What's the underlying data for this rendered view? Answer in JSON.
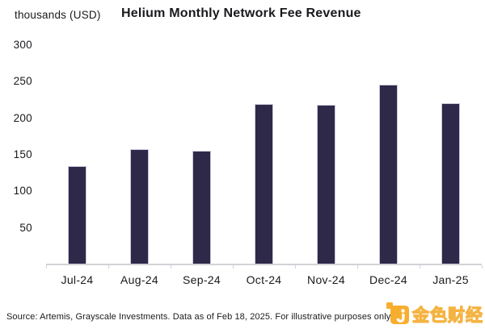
{
  "chart_data": {
    "type": "bar",
    "title": "Helium Monthly Network Fee Revenue",
    "unit_label": "thousands (USD)",
    "xlabel": "",
    "ylabel": "thousands (USD)",
    "categories": [
      "Jul-24",
      "Aug-24",
      "Sep-24",
      "Oct-24",
      "Nov-24",
      "Dec-24",
      "Jan-25"
    ],
    "values": [
      135,
      158,
      155,
      219,
      218,
      246,
      221
    ],
    "ylim": [
      0,
      300
    ],
    "yticks": [
      50,
      100,
      150,
      200,
      250,
      300
    ],
    "grid": false,
    "legend": "none",
    "bar_color": "#2E2849",
    "bar_border_color": "#CCC7D9",
    "axis_color": "#D3D2D8",
    "text_color": "#1A1A1E"
  },
  "footer": {
    "source_text": "Source: Artemis, Grayscale Investments. Data as of Feb 18, 2025. For illustrative purposes only."
  },
  "watermark": {
    "text": "金色财经",
    "brand_color": "#F7A81E",
    "icon": "jinse-finance-logo-icon"
  }
}
